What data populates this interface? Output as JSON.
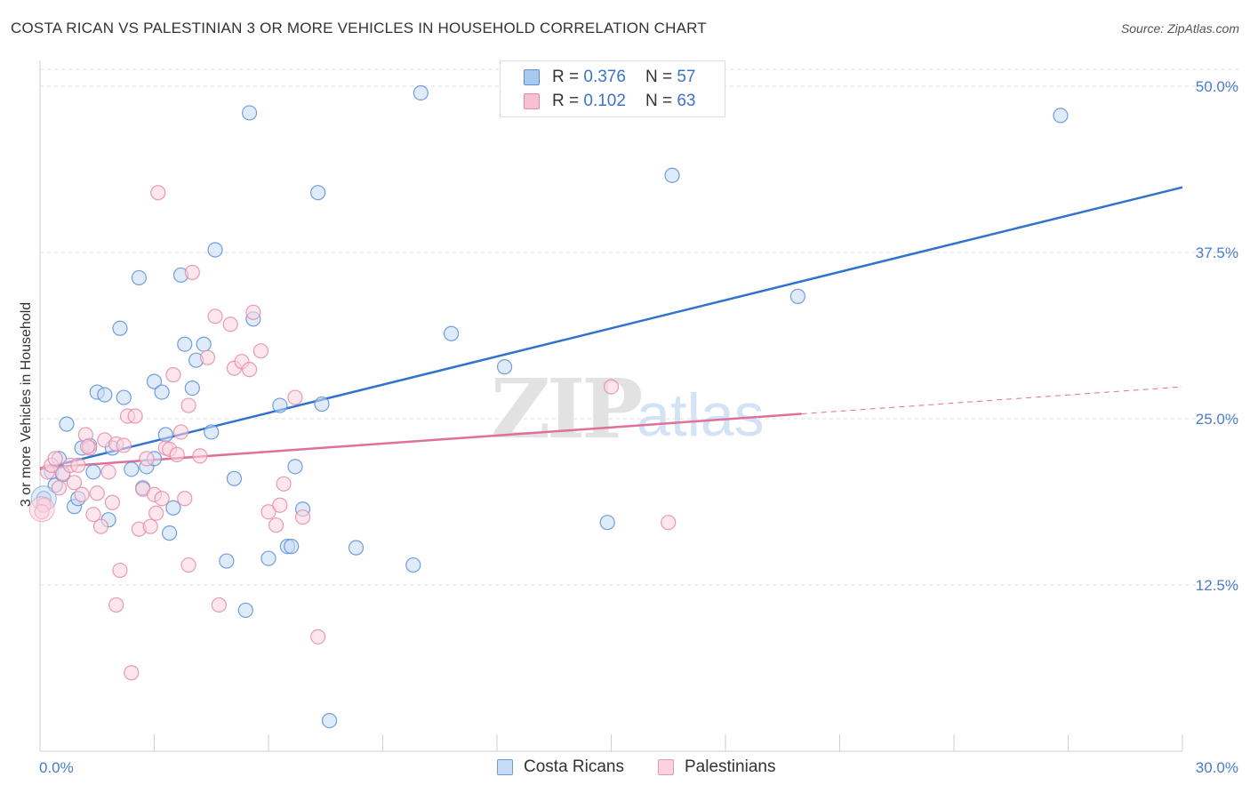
{
  "title": "COSTA RICAN VS PALESTINIAN 3 OR MORE VEHICLES IN HOUSEHOLD CORRELATION CHART",
  "source": "Source: ZipAtlas.com",
  "watermark": {
    "zip": "ZIP",
    "atlas": "atlas"
  },
  "legend": {
    "r_label": "R =",
    "n_label": "N =",
    "rows": [
      {
        "r": "0.376",
        "n": "57",
        "color": "#a9c8ef",
        "border": "#5a8ed6"
      },
      {
        "r": "0.102",
        "n": "63",
        "color": "#f7c0d0",
        "border": "#e58aa8"
      }
    ]
  },
  "bottom_legend": [
    {
      "label": "Costa Ricans",
      "color": "#c6dbf5",
      "border": "#6f9ad8"
    },
    {
      "label": "Palestinians",
      "color": "#fbd3df",
      "border": "#e598b0"
    }
  ],
  "chart_data": {
    "type": "scatter",
    "ylabel": "3 or more Vehicles in Household",
    "xlabel": "",
    "xlim": [
      0,
      30
    ],
    "ylim": [
      0,
      50
    ],
    "x_tick_labels": [
      "0.0%",
      "30.0%"
    ],
    "y_tick_labels": [
      "12.5%",
      "25.0%",
      "37.5%",
      "50.0%"
    ],
    "y_ticks": [
      12.5,
      25.0,
      37.5,
      50.0
    ],
    "grid": "horizontal dashed",
    "series": [
      {
        "name": "Costa Ricans",
        "color": "#5a8ed6",
        "fill": "#c6dbf5",
        "trend": {
          "x": [
            0,
            30
          ],
          "y": [
            21.2,
            42.4
          ],
          "color": "#2f73cc"
        },
        "points": [
          [
            0.1,
            19.0
          ],
          [
            0.3,
            21.0
          ],
          [
            0.4,
            20.0
          ],
          [
            0.5,
            22.0
          ],
          [
            0.6,
            20.8
          ],
          [
            0.7,
            24.6
          ],
          [
            0.9,
            18.4
          ],
          [
            1.0,
            19.0
          ],
          [
            1.1,
            22.8
          ],
          [
            1.3,
            23.0
          ],
          [
            1.4,
            21.0
          ],
          [
            1.5,
            27.0
          ],
          [
            1.7,
            26.8
          ],
          [
            1.8,
            17.4
          ],
          [
            1.9,
            22.8
          ],
          [
            2.1,
            31.8
          ],
          [
            2.2,
            26.6
          ],
          [
            2.4,
            21.2
          ],
          [
            2.6,
            35.6
          ],
          [
            2.7,
            19.8
          ],
          [
            2.8,
            21.4
          ],
          [
            3.0,
            22.0
          ],
          [
            3.0,
            27.8
          ],
          [
            3.2,
            27.0
          ],
          [
            3.3,
            23.8
          ],
          [
            3.4,
            16.4
          ],
          [
            3.5,
            18.3
          ],
          [
            3.7,
            35.8
          ],
          [
            3.8,
            30.6
          ],
          [
            4.0,
            27.3
          ],
          [
            4.1,
            29.4
          ],
          [
            4.3,
            30.6
          ],
          [
            4.5,
            24.0
          ],
          [
            4.6,
            37.7
          ],
          [
            4.9,
            14.3
          ],
          [
            5.1,
            20.5
          ],
          [
            5.4,
            10.6
          ],
          [
            5.5,
            48.0
          ],
          [
            5.6,
            32.5
          ],
          [
            6.0,
            14.5
          ],
          [
            6.3,
            26.0
          ],
          [
            6.5,
            15.4
          ],
          [
            6.6,
            15.4
          ],
          [
            6.7,
            21.4
          ],
          [
            6.9,
            18.2
          ],
          [
            7.3,
            42.0
          ],
          [
            7.4,
            26.1
          ],
          [
            7.6,
            2.3
          ],
          [
            8.3,
            15.3
          ],
          [
            9.8,
            14.0
          ],
          [
            10.0,
            49.5
          ],
          [
            10.8,
            31.4
          ],
          [
            12.2,
            28.9
          ],
          [
            14.9,
            17.2
          ],
          [
            16.6,
            43.3
          ],
          [
            19.9,
            34.2
          ],
          [
            26.8,
            47.8
          ]
        ]
      },
      {
        "name": "Palestinians",
        "color": "#e58aa8",
        "fill": "#fbd3df",
        "trend": {
          "x": [
            0,
            30
          ],
          "y": [
            21.3,
            27.4
          ],
          "solid_until": 20.0,
          "color": "#e0709a"
        },
        "points": [
          [
            0.1,
            18.5
          ],
          [
            0.2,
            21.0
          ],
          [
            0.3,
            21.5
          ],
          [
            0.4,
            22.0
          ],
          [
            0.5,
            19.8
          ],
          [
            0.6,
            20.9
          ],
          [
            0.8,
            21.5
          ],
          [
            0.9,
            20.2
          ],
          [
            1.0,
            21.5
          ],
          [
            1.1,
            19.3
          ],
          [
            1.2,
            23.8
          ],
          [
            1.3,
            22.8
          ],
          [
            1.4,
            17.8
          ],
          [
            1.5,
            19.4
          ],
          [
            1.6,
            16.9
          ],
          [
            1.7,
            23.4
          ],
          [
            1.8,
            21.0
          ],
          [
            1.9,
            18.7
          ],
          [
            2.0,
            23.1
          ],
          [
            2.0,
            11.0
          ],
          [
            2.1,
            13.6
          ],
          [
            2.2,
            23.0
          ],
          [
            2.3,
            25.2
          ],
          [
            2.4,
            5.9
          ],
          [
            2.5,
            25.2
          ],
          [
            2.6,
            16.7
          ],
          [
            2.7,
            19.7
          ],
          [
            2.8,
            22.0
          ],
          [
            2.9,
            16.9
          ],
          [
            3.0,
            19.3
          ],
          [
            3.1,
            42.0
          ],
          [
            3.2,
            19.0
          ],
          [
            3.3,
            22.8
          ],
          [
            3.4,
            22.7
          ],
          [
            3.5,
            28.3
          ],
          [
            3.6,
            22.3
          ],
          [
            3.7,
            24.0
          ],
          [
            3.8,
            19.0
          ],
          [
            3.9,
            14.0
          ],
          [
            3.9,
            26.0
          ],
          [
            4.0,
            36.0
          ],
          [
            4.2,
            22.2
          ],
          [
            4.4,
            29.6
          ],
          [
            4.6,
            32.7
          ],
          [
            4.7,
            11.0
          ],
          [
            5.0,
            32.1
          ],
          [
            5.1,
            28.8
          ],
          [
            5.3,
            29.3
          ],
          [
            5.5,
            28.7
          ],
          [
            5.6,
            33.0
          ],
          [
            5.8,
            30.1
          ],
          [
            6.0,
            18.0
          ],
          [
            6.2,
            17.0
          ],
          [
            6.3,
            18.5
          ],
          [
            6.4,
            20.1
          ],
          [
            6.7,
            26.6
          ],
          [
            6.9,
            17.6
          ],
          [
            7.3,
            8.6
          ],
          [
            16.5,
            17.2
          ],
          [
            15.0,
            27.4
          ],
          [
            0.05,
            18.0
          ],
          [
            1.25,
            22.9
          ],
          [
            3.05,
            17.9
          ]
        ]
      }
    ]
  }
}
